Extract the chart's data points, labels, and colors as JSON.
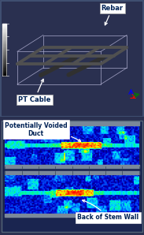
{
  "fig_width": 1.83,
  "fig_height": 2.98,
  "dpi": 100,
  "top_bg": "#00007a",
  "border_color": "#3a4a6a",
  "rebar_label": "Rebar",
  "pt_cable_label": "PT Cable",
  "voided_duct_label": "Potentially Voided\nDuct",
  "stem_wall_label": "Back of Stem Wall",
  "colorbar_colors": [
    "#000000",
    "#303030",
    "#606060",
    "#909090",
    "#c0c0c0",
    "#ffffff"
  ],
  "rebar_color": "#505050",
  "pt_cable_color": "#303030",
  "wire_color": "#aaaacc",
  "ruler_color": "#8899aa",
  "scan_bg": "#000060"
}
